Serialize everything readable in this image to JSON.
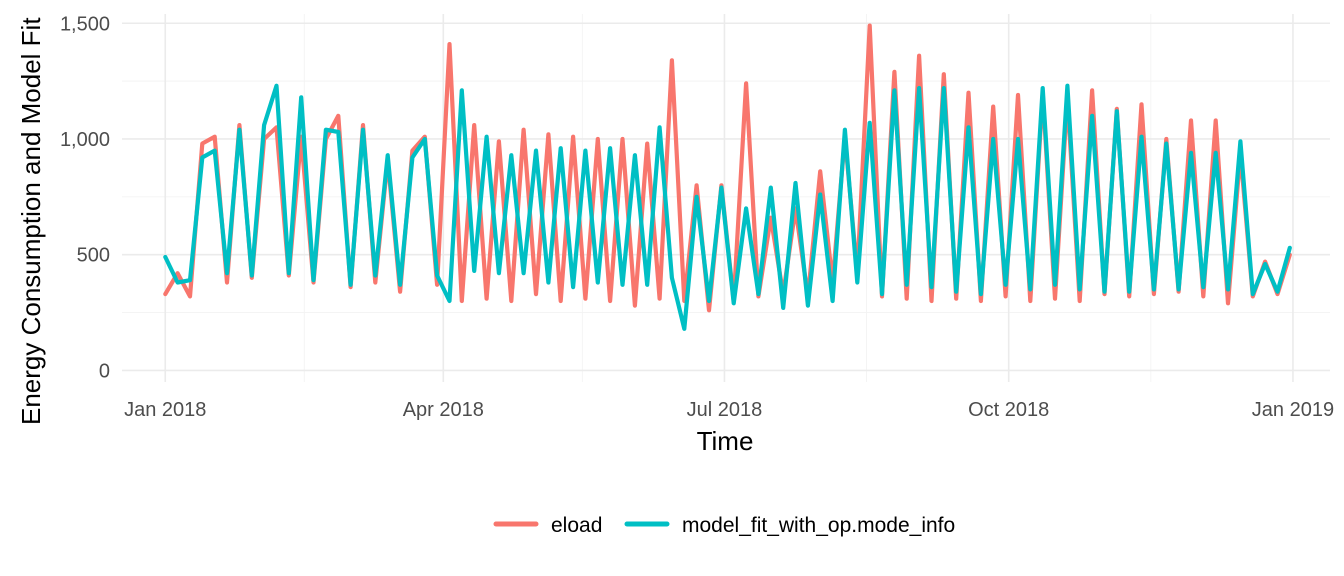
{
  "chart_data": {
    "type": "line",
    "title": "",
    "xlabel": "Time",
    "ylabel": "Energy Consumption and Model Fit",
    "ylim": [
      -50,
      1540
    ],
    "xlim": [
      "2017-12-18",
      "2019-01-13"
    ],
    "grid": true,
    "legend_position": "bottom",
    "x_ticks": [
      {
        "date": "2018-01-01",
        "label": "Jan 2018"
      },
      {
        "date": "2018-04-01",
        "label": "Apr 2018"
      },
      {
        "date": "2018-07-01",
        "label": "Jul 2018"
      },
      {
        "date": "2018-10-01",
        "label": "Oct 2018"
      },
      {
        "date": "2019-01-01",
        "label": "Jan 2019"
      }
    ],
    "x_minor_ticks": [
      "2018-02-15",
      "2018-05-16",
      "2018-08-16",
      "2018-11-16"
    ],
    "y_ticks": [
      {
        "value": 0,
        "label": "0"
      },
      {
        "value": 500,
        "label": "500"
      },
      {
        "value": 1000,
        "label": "1,000"
      },
      {
        "value": 1500,
        "label": "1,500"
      }
    ],
    "y_minor_ticks": [
      250,
      750,
      1250
    ],
    "x": [
      "2018-01-01",
      "2018-01-05",
      "2018-01-09",
      "2018-01-13",
      "2018-01-17",
      "2018-01-21",
      "2018-01-25",
      "2018-01-29",
      "2018-02-02",
      "2018-02-06",
      "2018-02-10",
      "2018-02-14",
      "2018-02-18",
      "2018-02-22",
      "2018-02-26",
      "2018-03-02",
      "2018-03-06",
      "2018-03-10",
      "2018-03-14",
      "2018-03-18",
      "2018-03-22",
      "2018-03-26",
      "2018-03-30",
      "2018-04-03",
      "2018-04-07",
      "2018-04-11",
      "2018-04-15",
      "2018-04-19",
      "2018-04-23",
      "2018-04-27",
      "2018-05-01",
      "2018-05-05",
      "2018-05-09",
      "2018-05-13",
      "2018-05-17",
      "2018-05-21",
      "2018-05-25",
      "2018-05-29",
      "2018-06-02",
      "2018-06-06",
      "2018-06-10",
      "2018-06-14",
      "2018-06-18",
      "2018-06-22",
      "2018-06-26",
      "2018-06-30",
      "2018-07-04",
      "2018-07-08",
      "2018-07-12",
      "2018-07-16",
      "2018-07-20",
      "2018-07-24",
      "2018-07-28",
      "2018-08-01",
      "2018-08-05",
      "2018-08-09",
      "2018-08-13",
      "2018-08-17",
      "2018-08-21",
      "2018-08-25",
      "2018-08-29",
      "2018-09-02",
      "2018-09-06",
      "2018-09-10",
      "2018-09-14",
      "2018-09-18",
      "2018-09-22",
      "2018-09-26",
      "2018-09-30",
      "2018-10-04",
      "2018-10-08",
      "2018-10-12",
      "2018-10-16",
      "2018-10-20",
      "2018-10-24",
      "2018-10-28",
      "2018-11-01",
      "2018-11-05",
      "2018-11-09",
      "2018-11-13",
      "2018-11-17",
      "2018-11-21",
      "2018-11-25",
      "2018-11-29",
      "2018-12-03",
      "2018-12-07",
      "2018-12-11",
      "2018-12-15",
      "2018-12-19",
      "2018-12-23",
      "2018-12-27",
      "2018-12-31"
    ],
    "series": [
      {
        "name": "eload",
        "color": "#f8766d",
        "values": [
          330,
          420,
          320,
          980,
          1010,
          380,
          1060,
          400,
          1000,
          1050,
          410,
          1010,
          380,
          1000,
          1100,
          360,
          1060,
          380,
          910,
          340,
          950,
          1010,
          370,
          1410,
          300,
          1060,
          310,
          990,
          300,
          1040,
          330,
          1020,
          300,
          1010,
          310,
          1000,
          300,
          1000,
          280,
          980,
          310,
          1340,
          300,
          800,
          260,
          800,
          300,
          1240,
          320,
          660,
          330,
          700,
          320,
          860,
          380,
          1010,
          420,
          1490,
          320,
          1290,
          310,
          1360,
          300,
          1280,
          310,
          1200,
          300,
          1140,
          320,
          1190,
          300,
          1200,
          310,
          1180,
          300,
          1210,
          330,
          1130,
          320,
          1150,
          330,
          1000,
          340,
          1080,
          320,
          1080,
          290,
          940,
          320,
          470,
          330,
          500
        ]
      },
      {
        "name": "model_fit_with_op.mode_info",
        "color": "#00bfc4",
        "values": [
          490,
          380,
          390,
          920,
          950,
          420,
          1040,
          410,
          1060,
          1230,
          420,
          1180,
          390,
          1040,
          1030,
          370,
          1040,
          410,
          930,
          370,
          920,
          1000,
          410,
          300,
          1210,
          430,
          1010,
          420,
          930,
          420,
          950,
          380,
          960,
          360,
          950,
          380,
          960,
          370,
          930,
          370,
          1050,
          400,
          180,
          750,
          300,
          790,
          290,
          700,
          330,
          790,
          270,
          810,
          280,
          760,
          300,
          1040,
          380,
          1070,
          330,
          1210,
          370,
          1220,
          360,
          1220,
          340,
          1050,
          330,
          1000,
          370,
          1000,
          350,
          1220,
          370,
          1230,
          350,
          1100,
          340,
          1120,
          340,
          1010,
          350,
          980,
          350,
          940,
          360,
          940,
          350,
          990,
          330,
          460,
          340,
          530
        ]
      }
    ],
    "legend": [
      {
        "label": "eload"
      },
      {
        "label": "model_fit_with_op.mode_info"
      }
    ]
  }
}
